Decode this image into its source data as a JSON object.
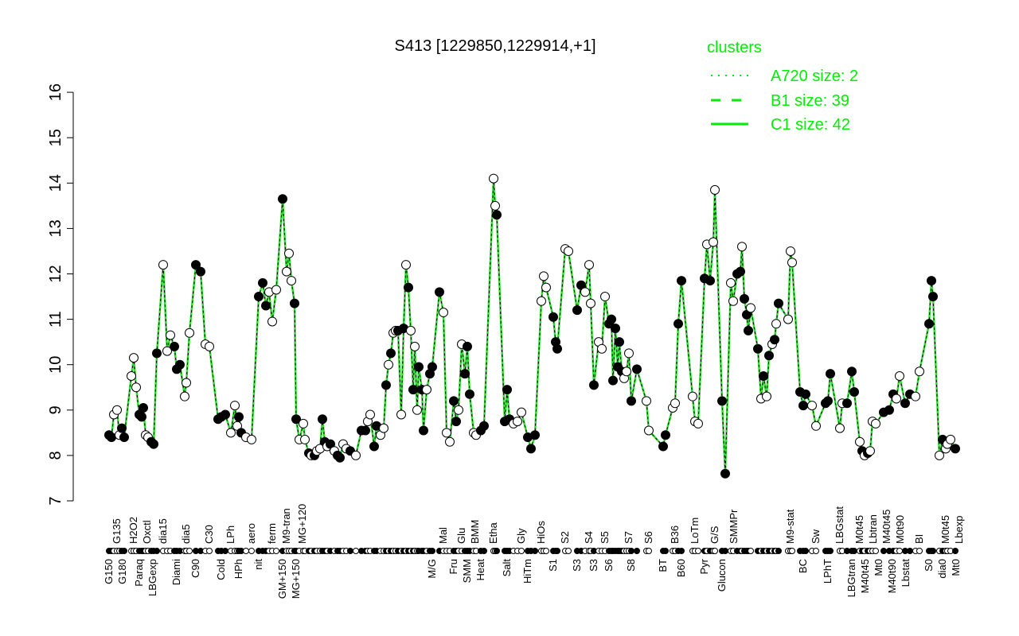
{
  "chart_data": {
    "type": "line",
    "title": "S413 [1229850,1229914,+1]",
    "xlabel": "",
    "ylabel": "",
    "ylim": [
      7,
      16
    ],
    "yticks": [
      7,
      8,
      9,
      10,
      11,
      12,
      13,
      14,
      15,
      16
    ],
    "xlim": [
      0,
      216
    ],
    "legend": {
      "title": "clusters",
      "placement": "top-right",
      "color": "#00ee00",
      "entries": [
        {
          "label": "A720 size: 2",
          "style": "dotted"
        },
        {
          "label": "B1 size: 39",
          "style": "dashed"
        },
        {
          "label": "C1 size: 42",
          "style": "solid"
        }
      ]
    },
    "line_color": "#33dd33",
    "points": [
      [
        1.4,
        8.45,
        1
      ],
      [
        2,
        8.4,
        1
      ],
      [
        2.6,
        8.9,
        0
      ],
      [
        3.4,
        9.0,
        0
      ],
      [
        4,
        8.45,
        0
      ],
      [
        4.6,
        8.6,
        1
      ],
      [
        5.2,
        8.4,
        1
      ],
      [
        7,
        9.75,
        0
      ],
      [
        7.6,
        10.15,
        0
      ],
      [
        8.2,
        9.5,
        0
      ],
      [
        9,
        8.9,
        1
      ],
      [
        9.6,
        8.85,
        1
      ],
      [
        10,
        9.05,
        1
      ],
      [
        10.6,
        8.45,
        0
      ],
      [
        11.2,
        8.4,
        0
      ],
      [
        12,
        8.3,
        1
      ],
      [
        12.6,
        8.25,
        1
      ],
      [
        13.4,
        10.25,
        1
      ],
      [
        15,
        12.2,
        0
      ],
      [
        16,
        10.3,
        0
      ],
      [
        16.8,
        10.65,
        0
      ],
      [
        17.8,
        10.4,
        1
      ],
      [
        18.4,
        9.9,
        1
      ],
      [
        19.2,
        10.0,
        1
      ],
      [
        20.4,
        9.3,
        0
      ],
      [
        20.8,
        9.6,
        0
      ],
      [
        21.6,
        10.7,
        0
      ],
      [
        23.2,
        12.2,
        1
      ],
      [
        24.4,
        12.05,
        1
      ],
      [
        25.6,
        10.45,
        0
      ],
      [
        26.6,
        10.4,
        0
      ],
      [
        28.8,
        8.8,
        1
      ],
      [
        29.6,
        8.85,
        1
      ],
      [
        30.6,
        8.9,
        1
      ],
      [
        32,
        8.5,
        0
      ],
      [
        33,
        9.1,
        0
      ],
      [
        33.6,
        8.65,
        0
      ],
      [
        34,
        8.85,
        1
      ],
      [
        34.6,
        8.5,
        1
      ],
      [
        35.8,
        8.4,
        0
      ],
      [
        37.2,
        8.35,
        0
      ],
      [
        39,
        11.5,
        1
      ],
      [
        40,
        11.8,
        1
      ],
      [
        40.8,
        11.3,
        1
      ],
      [
        41.6,
        11.6,
        0
      ],
      [
        42.4,
        10.95,
        0
      ],
      [
        43.4,
        11.65,
        0
      ],
      [
        45,
        13.65,
        1
      ],
      [
        46,
        12.05,
        0
      ],
      [
        46.6,
        12.45,
        0
      ],
      [
        47.2,
        11.85,
        0
      ],
      [
        48,
        11.35,
        1
      ],
      [
        48.4,
        8.8,
        1
      ],
      [
        49.2,
        8.35,
        0
      ],
      [
        50.2,
        8.7,
        0
      ],
      [
        50.6,
        8.35,
        0
      ],
      [
        51.6,
        8.05,
        1
      ],
      [
        52.2,
        8.0,
        0
      ],
      [
        53,
        8.0,
        1
      ],
      [
        53.6,
        8.1,
        0
      ],
      [
        54.4,
        8.15,
        0
      ],
      [
        55,
        8.8,
        1
      ],
      [
        55.6,
        8.3,
        1
      ],
      [
        56.2,
        8.2,
        0
      ],
      [
        57,
        8.25,
        1
      ],
      [
        58,
        8.1,
        0
      ],
      [
        58.8,
        8.0,
        1
      ],
      [
        59.4,
        7.95,
        1
      ],
      [
        60.2,
        8.25,
        0
      ],
      [
        61,
        8.15,
        0
      ],
      [
        62,
        8.1,
        1
      ],
      [
        63.4,
        8.0,
        0
      ],
      [
        64.8,
        8.55,
        1
      ],
      [
        65.8,
        8.55,
        1
      ],
      [
        66.4,
        8.75,
        0
      ],
      [
        67,
        8.9,
        0
      ],
      [
        68,
        8.2,
        1
      ],
      [
        68.6,
        8.65,
        1
      ],
      [
        69.6,
        8.45,
        0
      ],
      [
        70.4,
        8.6,
        0
      ],
      [
        71,
        9.55,
        1
      ],
      [
        71.6,
        10.0,
        0
      ],
      [
        72.2,
        10.25,
        1
      ],
      [
        72.8,
        10.7,
        0
      ],
      [
        73.4,
        10.75,
        0
      ],
      [
        74,
        10.75,
        1
      ],
      [
        74.8,
        8.9,
        0
      ],
      [
        75.4,
        10.8,
        1
      ],
      [
        76,
        12.2,
        0
      ],
      [
        76.6,
        11.7,
        1
      ],
      [
        77.2,
        10.75,
        0
      ],
      [
        77.8,
        9.45,
        1
      ],
      [
        78.2,
        10.4,
        0
      ],
      [
        78.8,
        9.0,
        0
      ],
      [
        79.2,
        9.95,
        1
      ],
      [
        80,
        9.45,
        1
      ],
      [
        80.4,
        8.55,
        1
      ],
      [
        81.2,
        9.45,
        0
      ],
      [
        82,
        9.8,
        1
      ],
      [
        82.6,
        9.95,
        1
      ],
      [
        84.4,
        11.6,
        1
      ],
      [
        85.4,
        11.15,
        0
      ],
      [
        86.2,
        8.5,
        0
      ],
      [
        87,
        8.3,
        0
      ],
      [
        88,
        9.2,
        1
      ],
      [
        88.6,
        8.75,
        1
      ],
      [
        89.2,
        9.0,
        0
      ],
      [
        90,
        10.45,
        0
      ],
      [
        90.8,
        9.8,
        1
      ],
      [
        91.4,
        10.4,
        1
      ],
      [
        92,
        9.35,
        1
      ],
      [
        93,
        8.5,
        0
      ],
      [
        93.6,
        8.45,
        0
      ],
      [
        94.8,
        8.55,
        1
      ],
      [
        95.6,
        8.65,
        1
      ],
      [
        98,
        14.1,
        0
      ],
      [
        98.4,
        13.5,
        0
      ],
      [
        98.8,
        13.3,
        1
      ],
      [
        100.8,
        8.75,
        1
      ],
      [
        101.4,
        9.45,
        1
      ],
      [
        102,
        8.8,
        1
      ],
      [
        103,
        8.7,
        0
      ],
      [
        104,
        8.75,
        0
      ],
      [
        105,
        8.95,
        0
      ],
      [
        106.6,
        8.4,
        1
      ],
      [
        107.4,
        8.15,
        1
      ],
      [
        108.4,
        8.45,
        1
      ],
      [
        110,
        11.4,
        0
      ],
      [
        110.6,
        11.95,
        0
      ],
      [
        111.2,
        11.7,
        0
      ],
      [
        113,
        11.05,
        1
      ],
      [
        113.6,
        10.5,
        1
      ],
      [
        114,
        10.35,
        1
      ],
      [
        116,
        12.55,
        0
      ],
      [
        116.8,
        12.5,
        0
      ],
      [
        119,
        11.2,
        1
      ],
      [
        120,
        11.75,
        1
      ],
      [
        121,
        11.6,
        0
      ],
      [
        122,
        12.2,
        0
      ],
      [
        122.4,
        11.35,
        0
      ],
      [
        123.2,
        9.55,
        1
      ],
      [
        124.4,
        10.5,
        0
      ],
      [
        125.2,
        10.35,
        0
      ],
      [
        126,
        11.5,
        0
      ],
      [
        127,
        10.9,
        1
      ],
      [
        127.6,
        11.0,
        1
      ],
      [
        128,
        9.65,
        1
      ],
      [
        128.6,
        10.8,
        1
      ],
      [
        129.2,
        9.95,
        1
      ],
      [
        129.6,
        10.5,
        1
      ],
      [
        130.2,
        9.85,
        1
      ],
      [
        130.8,
        9.7,
        0
      ],
      [
        131.4,
        9.85,
        0
      ],
      [
        132,
        10.25,
        0
      ],
      [
        132.6,
        9.2,
        1
      ],
      [
        134,
        9.9,
        1
      ],
      [
        136.4,
        9.2,
        0
      ],
      [
        137,
        8.55,
        0
      ],
      [
        140.6,
        8.2,
        1
      ],
      [
        141.2,
        8.45,
        1
      ],
      [
        143,
        9.05,
        0
      ],
      [
        143.6,
        9.15,
        0
      ],
      [
        144.4,
        10.9,
        1
      ],
      [
        145.2,
        11.85,
        1
      ],
      [
        148,
        9.3,
        0
      ],
      [
        148.6,
        8.75,
        0
      ],
      [
        149.4,
        8.7,
        0
      ],
      [
        151,
        11.9,
        1
      ],
      [
        151.6,
        12.65,
        0
      ],
      [
        152.4,
        11.85,
        1
      ],
      [
        153.2,
        12.7,
        0
      ],
      [
        153.6,
        13.85,
        0
      ],
      [
        155.4,
        9.2,
        1
      ],
      [
        156.2,
        7.6,
        1
      ],
      [
        157.6,
        11.8,
        0
      ],
      [
        158.2,
        11.4,
        0
      ],
      [
        159.2,
        12.0,
        1
      ],
      [
        160,
        12.05,
        1
      ],
      [
        160.4,
        12.6,
        0
      ],
      [
        161,
        11.45,
        1
      ],
      [
        161.6,
        11.1,
        1
      ],
      [
        162,
        10.75,
        1
      ],
      [
        162.6,
        11.25,
        0
      ],
      [
        164.4,
        10.35,
        1
      ],
      [
        165.2,
        9.25,
        0
      ],
      [
        165.8,
        9.75,
        1
      ],
      [
        166.6,
        9.3,
        0
      ],
      [
        167.2,
        10.2,
        1
      ],
      [
        168,
        10.45,
        0
      ],
      [
        168.6,
        10.55,
        1
      ],
      [
        169,
        10.9,
        0
      ],
      [
        169.6,
        11.35,
        1
      ],
      [
        172,
        11.0,
        0
      ],
      [
        172.6,
        12.5,
        0
      ],
      [
        173,
        12.25,
        0
      ],
      [
        175,
        9.4,
        1
      ],
      [
        175.8,
        9.1,
        1
      ],
      [
        176.4,
        9.35,
        1
      ],
      [
        178,
        9.1,
        0
      ],
      [
        179,
        8.65,
        0
      ],
      [
        181.4,
        9.15,
        1
      ],
      [
        182,
        9.2,
        1
      ],
      [
        182.6,
        9.8,
        1
      ],
      [
        185,
        8.6,
        0
      ],
      [
        185.6,
        9.15,
        0
      ],
      [
        186.8,
        9.15,
        1
      ],
      [
        188,
        9.85,
        1
      ],
      [
        188.6,
        9.4,
        1
      ],
      [
        190,
        8.3,
        0
      ],
      [
        190.6,
        8.1,
        1
      ],
      [
        191.2,
        8.0,
        0
      ],
      [
        192,
        8.05,
        1
      ],
      [
        192.6,
        8.1,
        0
      ],
      [
        193.2,
        8.75,
        0
      ],
      [
        194,
        8.7,
        0
      ],
      [
        196,
        8.95,
        1
      ],
      [
        197.4,
        9.0,
        1
      ],
      [
        198.4,
        9.35,
        1
      ],
      [
        199.2,
        9.25,
        0
      ],
      [
        200,
        9.75,
        0
      ],
      [
        201.4,
        9.15,
        1
      ],
      [
        202.6,
        9.35,
        1
      ],
      [
        204,
        9.3,
        0
      ],
      [
        205,
        9.85,
        0
      ],
      [
        207.4,
        10.9,
        1
      ],
      [
        208,
        11.85,
        1
      ],
      [
        208.4,
        11.5,
        1
      ],
      [
        210,
        8.0,
        0
      ],
      [
        210.8,
        8.35,
        1
      ],
      [
        211.6,
        8.15,
        0
      ],
      [
        212,
        8.25,
        0
      ],
      [
        212.8,
        8.35,
        0
      ],
      [
        214,
        8.15,
        1
      ]
    ],
    "xlabels_top": [
      [
        3.4,
        "G135"
      ],
      [
        7.6,
        "H2O2"
      ],
      [
        10.6,
        "Oxctl"
      ],
      [
        15,
        "dia15"
      ],
      [
        20.8,
        "dia5"
      ],
      [
        26.6,
        "C30"
      ],
      [
        32,
        "LPh"
      ],
      [
        37.2,
        "aero"
      ],
      [
        42.4,
        "ferm"
      ],
      [
        46,
        "M9-tran"
      ],
      [
        50,
        "MG+120"
      ],
      [
        85.4,
        "Mal"
      ],
      [
        90,
        "Glu"
      ],
      [
        93,
        "BMM"
      ],
      [
        98,
        "Etha"
      ],
      [
        105,
        "Gly"
      ],
      [
        110,
        "HiOs"
      ],
      [
        116,
        "S2"
      ],
      [
        122,
        "S4"
      ],
      [
        126,
        "S5"
      ],
      [
        132,
        "S7"
      ],
      [
        137,
        "S6"
      ],
      [
        143.6,
        "B36"
      ],
      [
        148.6,
        "LoTm"
      ],
      [
        153.6,
        "G/S"
      ],
      [
        158.4,
        "SMMPr"
      ],
      [
        172.6,
        "M9-stat"
      ],
      [
        179,
        "Sw"
      ],
      [
        185,
        "LBGstat"
      ],
      [
        190,
        "M0t45"
      ],
      [
        192,
        "Lbtran"
      ],
      [
        193.2,
        "M40t45"
      ],
      [
        200,
        "M0t90"
      ],
      [
        205,
        "BI"
      ],
      [
        211.6,
        "M0t45"
      ],
      [
        212.8,
        "Lbexp"
      ]
    ],
    "xlabels_bottom": [
      [
        1.4,
        "G150"
      ],
      [
        4.6,
        "G180"
      ],
      [
        9,
        "Paraq"
      ],
      [
        12,
        "LBGexp"
      ],
      [
        18.4,
        "Diami"
      ],
      [
        23.2,
        "C90"
      ],
      [
        29.6,
        "Cold"
      ],
      [
        34,
        "HPh"
      ],
      [
        39,
        "nit"
      ],
      [
        45,
        "GM+150"
      ],
      [
        48,
        "MG+150"
      ],
      [
        82.6,
        "M/G"
      ],
      [
        88,
        "Fru"
      ],
      [
        91.4,
        "SMM"
      ],
      [
        94.8,
        "Heat"
      ],
      [
        101.4,
        "Salt"
      ],
      [
        106.6,
        "HiTm"
      ],
      [
        113,
        "S1"
      ],
      [
        119,
        "S3"
      ],
      [
        123.2,
        "S3"
      ],
      [
        127,
        "S6"
      ],
      [
        132.6,
        "S8"
      ],
      [
        140.6,
        "BT"
      ],
      [
        145.2,
        "B60"
      ],
      [
        151,
        "Pyr"
      ],
      [
        155.4,
        "Glucon"
      ],
      [
        175.8,
        "BC"
      ],
      [
        182,
        "LPhT"
      ],
      [
        188,
        "LBGtran"
      ],
      [
        190.6,
        "M40t45"
      ],
      [
        194,
        "Mt0"
      ],
      [
        196,
        "M40t90"
      ],
      [
        201.4,
        "Lbstat"
      ],
      [
        207.4,
        "S0"
      ],
      [
        210,
        "dia0"
      ],
      [
        212,
        "Mt0"
      ]
    ]
  }
}
